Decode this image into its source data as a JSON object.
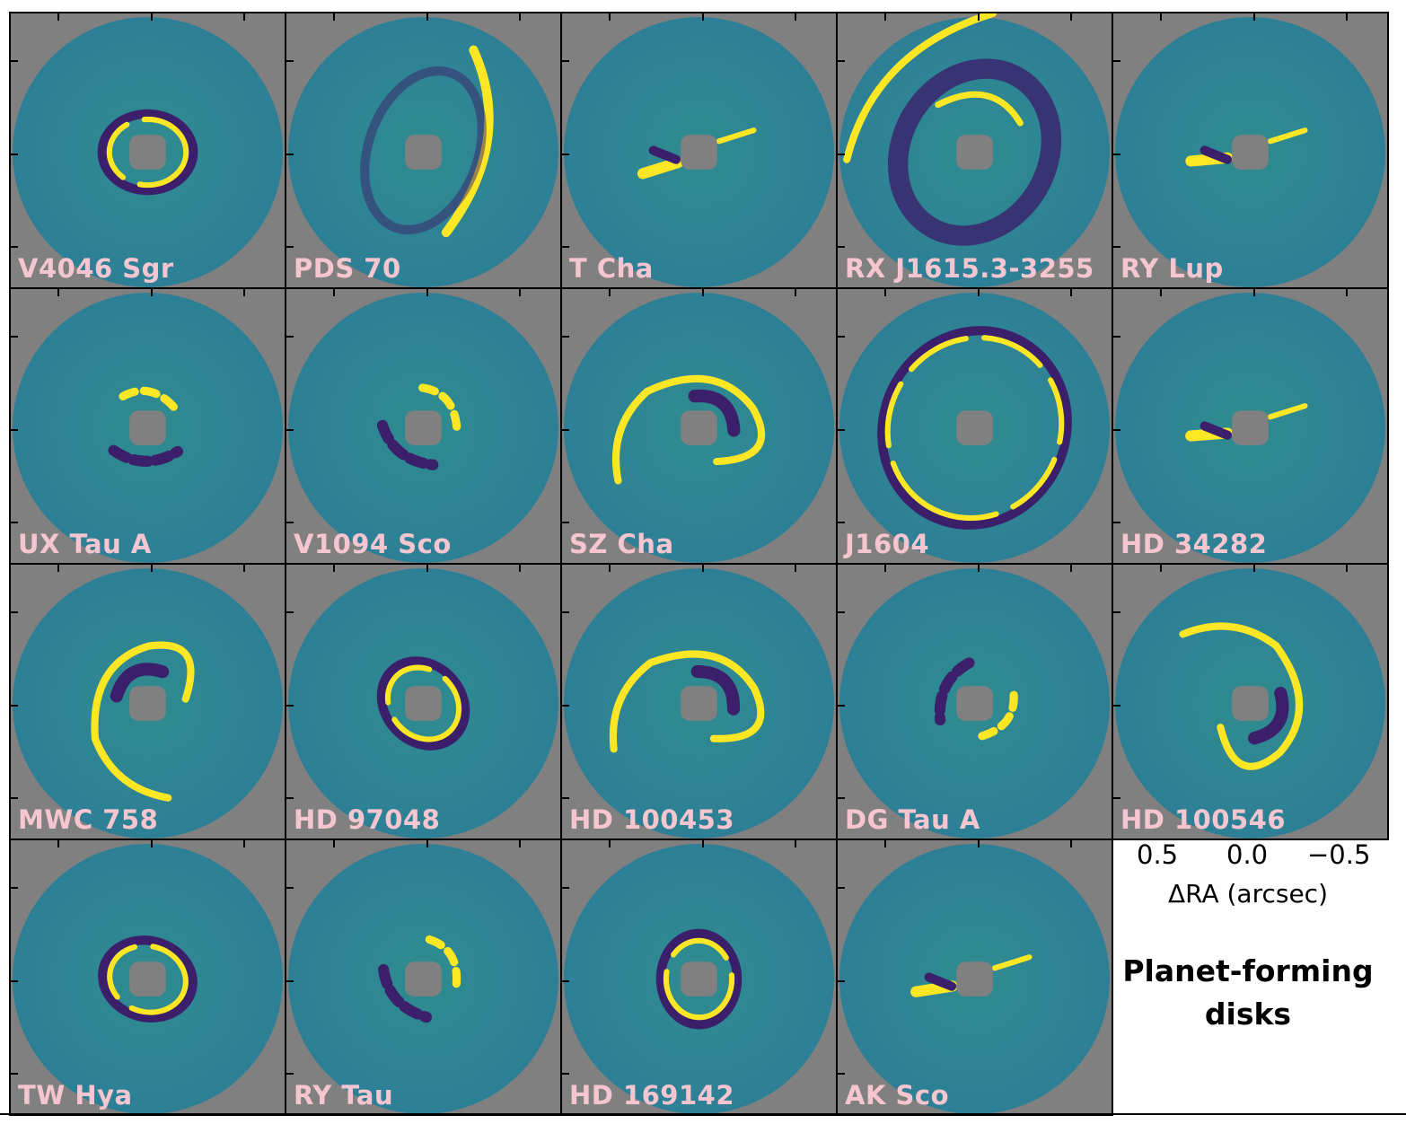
{
  "panels": [
    {
      "name": "V4046 Sgr",
      "feature": "ring"
    },
    {
      "name": "PDS 70",
      "feature": "arc"
    },
    {
      "name": "T Cha",
      "feature": "jet"
    },
    {
      "name": "RX J1615.3-3255",
      "feature": "outer-arc"
    },
    {
      "name": "RY Lup",
      "feature": "jet"
    },
    {
      "name": "UX Tau A",
      "feature": "compact"
    },
    {
      "name": "V1094 Sco",
      "feature": "compact"
    },
    {
      "name": "SZ Cha",
      "feature": "spiral"
    },
    {
      "name": "J1604",
      "feature": "big-ring"
    },
    {
      "name": "HD 34282",
      "feature": "jet"
    },
    {
      "name": "MWC 758",
      "feature": "spiral"
    },
    {
      "name": "HD 97048",
      "feature": "ring"
    },
    {
      "name": "HD 100453",
      "feature": "spiral"
    },
    {
      "name": "DG Tau A",
      "feature": "compact"
    },
    {
      "name": "HD 100546",
      "feature": "spiral"
    },
    {
      "name": "TW Hya",
      "feature": "ring"
    },
    {
      "name": "RY Tau",
      "feature": "compact"
    },
    {
      "name": "HD 169142",
      "feature": "ring"
    },
    {
      "name": "AK Sco",
      "feature": "jet"
    }
  ],
  "axis": {
    "ticks": [
      "0.5",
      "0.0",
      "−0.5"
    ],
    "label": "ΔRA (arcsec)"
  },
  "caption": {
    "line1": "Planet-forming",
    "line2": "disks"
  },
  "colors": {
    "background": "#808080",
    "disk": "#2a8f95",
    "bright": "#fde725",
    "dark": "#3b1f6b",
    "label": "#f6c6d0"
  }
}
